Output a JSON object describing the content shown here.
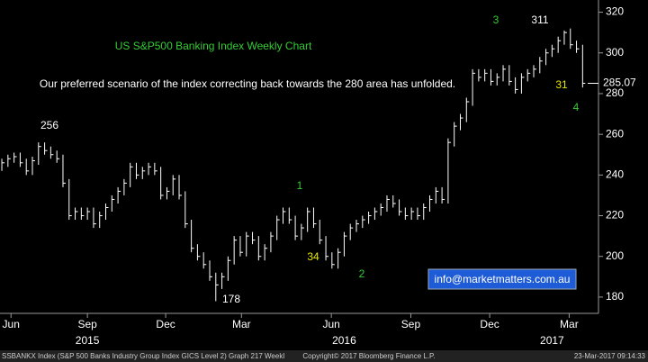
{
  "chart_data": {
    "type": "hlc",
    "title": "US S&P500 Banking Index Weekly Chart",
    "subtitle": "Our preferred scenario of the index correcting back towards the 280 area has unfolded.",
    "series": [
      {
        "name": "SSBANKX Index",
        "color": "#ffffff",
        "high": [
          248,
          250,
          251,
          251,
          248,
          249,
          256,
          256,
          254,
          252,
          250,
          238,
          224,
          224,
          224,
          224,
          222,
          226,
          230,
          234,
          238,
          246,
          246,
          244,
          246,
          246,
          244,
          234,
          240,
          240,
          232,
          218,
          206,
          202,
          198,
          192,
          192,
          200,
          210,
          210,
          212,
          212,
          210,
          206,
          212,
          220,
          224,
          224,
          220,
          216,
          224,
          224,
          218,
          210,
          202,
          204,
          212,
          216,
          218,
          220,
          222,
          224,
          226,
          230,
          230,
          228,
          224,
          224,
          224,
          226,
          230,
          234,
          234,
          258,
          266,
          270,
          278,
          292,
          292,
          292,
          292,
          290,
          294,
          294,
          288,
          290,
          292,
          294,
          298,
          302,
          304,
          308,
          311,
          312,
          306,
          304
        ],
        "low": [
          242,
          244,
          246,
          244,
          240,
          240,
          245,
          250,
          248,
          246,
          234,
          218,
          218,
          218,
          218,
          214,
          214,
          218,
          222,
          226,
          230,
          234,
          238,
          238,
          240,
          240,
          228,
          228,
          230,
          228,
          214,
          202,
          198,
          194,
          188,
          178,
          184,
          188,
          196,
          200,
          200,
          206,
          198,
          198,
          202,
          208,
          216,
          216,
          208,
          208,
          212,
          214,
          206,
          198,
          194,
          194,
          200,
          208,
          212,
          214,
          216,
          218,
          220,
          222,
          224,
          220,
          218,
          218,
          218,
          218,
          222,
          226,
          226,
          226,
          254,
          262,
          266,
          274,
          286,
          286,
          284,
          284,
          286,
          284,
          280,
          280,
          286,
          288,
          290,
          294,
          298,
          300,
          304,
          302,
          300,
          283
        ],
        "close": [
          246,
          248,
          249,
          246,
          242,
          247,
          254,
          252,
          250,
          248,
          236,
          220,
          222,
          220,
          222,
          216,
          220,
          224,
          228,
          232,
          236,
          244,
          240,
          242,
          244,
          242,
          230,
          232,
          238,
          230,
          216,
          204,
          200,
          196,
          190,
          186,
          190,
          198,
          208,
          202,
          210,
          208,
          200,
          204,
          210,
          218,
          222,
          218,
          210,
          214,
          222,
          216,
          208,
          200,
          196,
          202,
          210,
          214,
          216,
          218,
          220,
          222,
          224,
          228,
          226,
          222,
          220,
          222,
          220,
          224,
          228,
          232,
          228,
          256,
          264,
          268,
          276,
          290,
          288,
          290,
          286,
          288,
          292,
          286,
          282,
          288,
          290,
          292,
          296,
          300,
          302,
          306,
          310,
          304,
          302,
          285.07
        ]
      }
    ],
    "last_price": 285.07,
    "last_price_label": "285.07",
    "ylim": [
      172,
      326
    ],
    "yticks": [
      180,
      200,
      220,
      240,
      260,
      280,
      300,
      320
    ],
    "xlim": [
      -0.3,
      97.6
    ],
    "xticks": [
      {
        "value": 1.5,
        "label": "Jun"
      },
      {
        "value": 14,
        "label": "Sep"
      },
      {
        "value": 26.8,
        "label": "Dec"
      },
      {
        "value": 39.2,
        "label": "Mar"
      },
      {
        "value": 53.9,
        "label": "Jun"
      },
      {
        "value": 66.9,
        "label": "Sep"
      },
      {
        "value": 79.8,
        "label": "Dec"
      },
      {
        "value": 92.8,
        "label": "Mar"
      }
    ],
    "years": [
      {
        "value": 14,
        "label": "2015"
      },
      {
        "value": 56,
        "label": "2016"
      },
      {
        "value": 90,
        "label": "2017"
      }
    ],
    "annotations": [
      {
        "text": "256",
        "color": "#ffffff"
      },
      {
        "text": "178",
        "color": "#ffffff"
      },
      {
        "text": "311",
        "color": "#ffffff"
      },
      {
        "text": "1",
        "color": "#33cc33"
      },
      {
        "text": "34",
        "color": "#e6e600"
      },
      {
        "text": "2",
        "color": "#33cc33"
      },
      {
        "text": "3",
        "color": "#33cc33"
      },
      {
        "text": "31",
        "color": "#e6e600"
      },
      {
        "text": "4",
        "color": "#33cc33"
      }
    ],
    "contact": "info@marketmatters.com.au",
    "footer": {
      "left": "SSBANKX Index (S&P 500 Banks Industry Group Index GICS Level 2) Graph 217  Weekl",
      "center": "Copyright© 2017 Bloomberg Finance L.P.",
      "right": "23-Mar-2017 09:14:33"
    }
  }
}
